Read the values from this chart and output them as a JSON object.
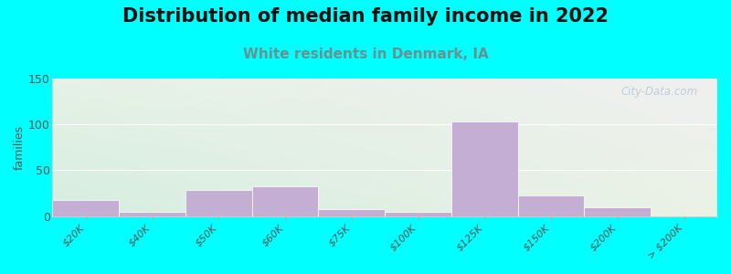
{
  "title": "Distribution of median family income in 2022",
  "subtitle": "White residents in Denmark, IA",
  "ylabel": "families",
  "categories": [
    "$20K",
    "$40K",
    "$50K",
    "$60K",
    "$75K",
    "$100K",
    "$125K",
    "$150K",
    "$200K",
    "> $200K"
  ],
  "values": [
    18,
    5,
    28,
    32,
    8,
    5,
    103,
    23,
    10,
    0
  ],
  "bar_color": "#c4aed4",
  "bar_edgecolor": "#c4aed4",
  "bg_color": "#00ffff",
  "plot_bg_tl": "#d8efe0",
  "plot_bg_tr": "#f0f0f0",
  "plot_bg_bl": "#d8efe0",
  "plot_bg_br": "#f0f0f0",
  "ylim": [
    0,
    150
  ],
  "yticks": [
    0,
    50,
    100,
    150
  ],
  "title_fontsize": 15,
  "subtitle_fontsize": 11,
  "subtitle_color": "#6a9090",
  "watermark": "City-Data.com",
  "watermark_color": "#b8c8d8"
}
